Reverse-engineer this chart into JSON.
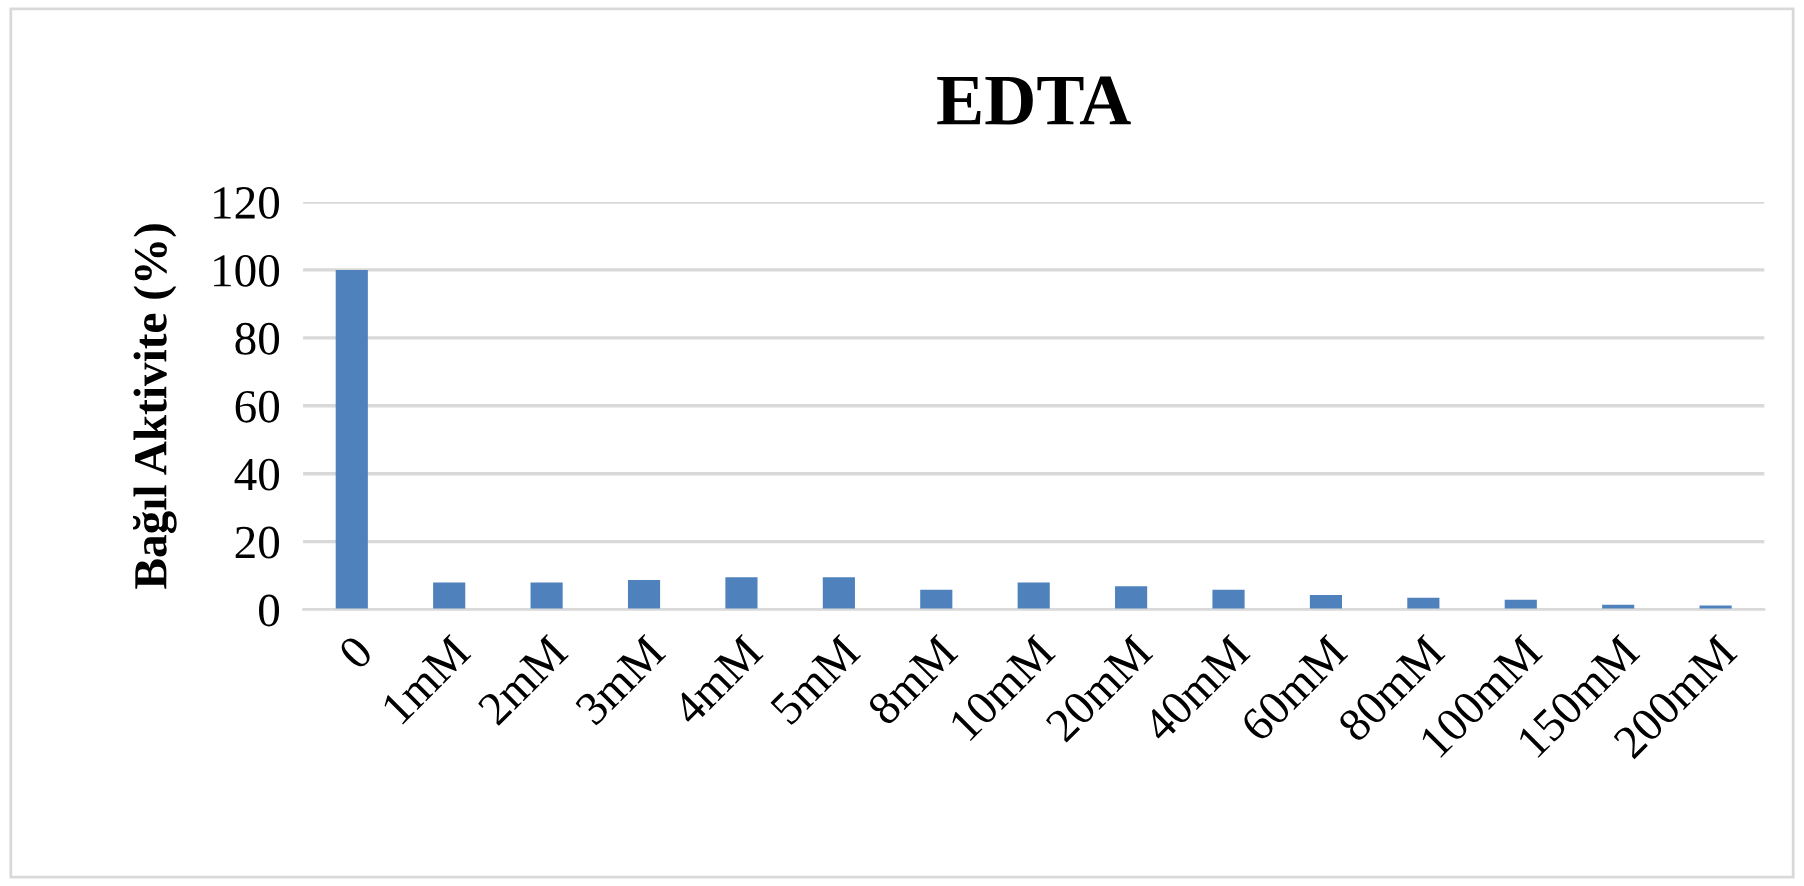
{
  "chart_data": {
    "type": "bar",
    "title": "EDTA",
    "ylabel": "Bağıl Aktivite (%)",
    "categories": [
      "0",
      "1mM",
      "2mM",
      "3mM",
      "4mM",
      "5mM",
      "8mM",
      "10mM",
      "20mM",
      "40mM",
      "60mM",
      "80mM",
      "100mM",
      "150mM",
      "200mM"
    ],
    "values": [
      100,
      8,
      8,
      8.7,
      9.5,
      9.5,
      5.8,
      8,
      6.9,
      5.8,
      4.3,
      3.5,
      2.9,
      1.4,
      1.2
    ],
    "color": "#4f81bd",
    "ylim": [
      0,
      120
    ],
    "yticks": [
      0,
      20,
      40,
      60,
      80,
      100,
      120
    ],
    "grid": "y",
    "legend": false
  }
}
